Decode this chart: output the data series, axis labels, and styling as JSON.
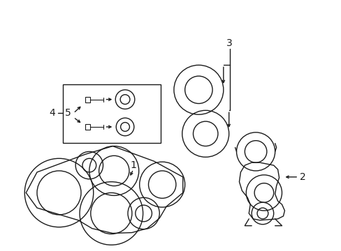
{
  "bg_color": "#ffffff",
  "line_color": "#1a1a1a",
  "lw": 1.0,
  "fig_w": 4.89,
  "fig_h": 3.6,
  "dpi": 100
}
